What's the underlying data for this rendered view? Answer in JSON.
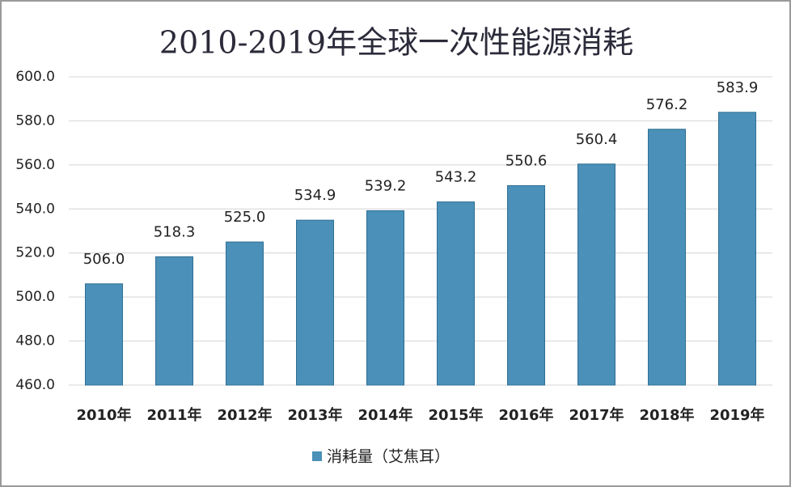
{
  "chart_data": {
    "type": "bar",
    "title": "2010-2019年全球一次性能源消耗",
    "categories": [
      "2010年",
      "2011年",
      "2012年",
      "2013年",
      "2014年",
      "2015年",
      "2016年",
      "2017年",
      "2018年",
      "2019年"
    ],
    "series": [
      {
        "name": "消耗量（艾焦耳）",
        "color": "#4a90b8",
        "values": [
          506.0,
          518.3,
          525.0,
          534.9,
          539.2,
          543.2,
          550.6,
          560.4,
          576.2,
          583.9
        ],
        "value_labels": [
          "506.0",
          "518.3",
          "525.0",
          "534.9",
          "539.2",
          "543.2",
          "550.6",
          "560.4",
          "576.2",
          "583.9"
        ]
      }
    ],
    "ylim": [
      460,
      600
    ],
    "yticks": [
      {
        "value": 460,
        "label": "460.0"
      },
      {
        "value": 480,
        "label": "480.0"
      },
      {
        "value": 500,
        "label": "500.0"
      },
      {
        "value": 520,
        "label": "520.0"
      },
      {
        "value": 540,
        "label": "540.0"
      },
      {
        "value": 560,
        "label": "560.0"
      },
      {
        "value": 580,
        "label": "580.0"
      },
      {
        "value": 600,
        "label": "600.0"
      }
    ],
    "grid": true,
    "legend": "bottom"
  }
}
